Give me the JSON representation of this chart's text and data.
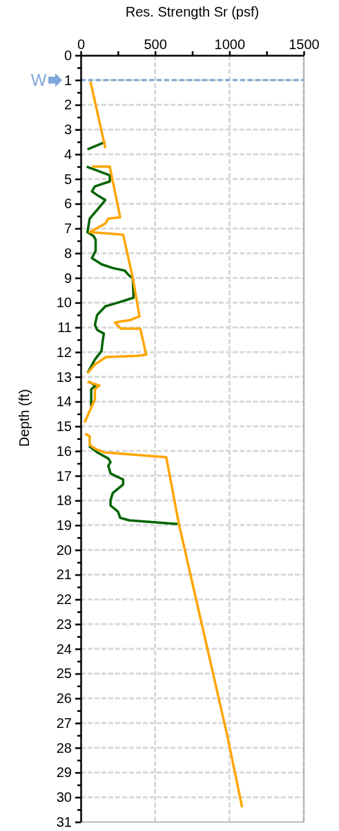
{
  "chart_data": {
    "type": "line",
    "xlabel": "Res. Strength Sr (psf)",
    "ylabel": "Depth (ft)",
    "xlim": [
      0,
      1500
    ],
    "xticks": [
      0,
      {
        "value": 250,
        "label": null
      },
      500,
      {
        "value": 750,
        "label": null
      },
      1000,
      {
        "value": 1250,
        "label": null
      },
      1500
    ],
    "ylim": [
      31,
      0
    ],
    "yticks": [
      0,
      {
        "value": 0.5,
        "label": null
      },
      1,
      {
        "value": 1.5,
        "label": null
      },
      2,
      {
        "value": 2.5,
        "label": null
      },
      3,
      {
        "value": 3.5,
        "label": null
      },
      4,
      {
        "value": 4.5,
        "label": null
      },
      5,
      {
        "value": 5.5,
        "label": null
      },
      6,
      {
        "value": 6.5,
        "label": null
      },
      7,
      {
        "value": 7.5,
        "label": null
      },
      8,
      {
        "value": 8.5,
        "label": null
      },
      9,
      {
        "value": 9.5,
        "label": null
      },
      10,
      {
        "value": 10.5,
        "label": null
      },
      11,
      {
        "value": 11.5,
        "label": null
      },
      12,
      {
        "value": 12.5,
        "label": null
      },
      13,
      {
        "value": 13.5,
        "label": null
      },
      14,
      {
        "value": 14.5,
        "label": null
      },
      15,
      {
        "value": 15.5,
        "label": null
      },
      16,
      {
        "value": 16.5,
        "label": null
      },
      17,
      {
        "value": 17.5,
        "label": null
      },
      18,
      {
        "value": 18.5,
        "label": null
      },
      19,
      {
        "value": 19.5,
        "label": null
      },
      20,
      {
        "value": 20.5,
        "label": null
      },
      21,
      {
        "value": 21.5,
        "label": null
      },
      22,
      {
        "value": 22.5,
        "label": null
      },
      23,
      {
        "value": 23.5,
        "label": null
      },
      24,
      {
        "value": 24.5,
        "label": null
      },
      25,
      {
        "value": 25.5,
        "label": null
      },
      26,
      {
        "value": 26.5,
        "label": null
      },
      27,
      {
        "value": 27.5,
        "label": null
      },
      28,
      {
        "value": 28.5,
        "label": null
      },
      29,
      {
        "value": 29.5,
        "label": null
      },
      30,
      {
        "value": 30.5,
        "label": null
      },
      31
    ],
    "grid": true,
    "marker": "none",
    "line_style": "solid",
    "ref_lines": [
      {
        "axis": "y",
        "value": 1,
        "label": "W",
        "color": "#7fa7d8",
        "line_style": "dashed"
      }
    ],
    "series": [
      {
        "color": "#006400",
        "x": [
          165,
          45,
          null,
          40,
          195,
          195,
          95,
          75,
          110,
          165,
          110,
          60,
          45,
          85,
          100,
          100,
          75,
          140,
          215,
          295,
          325,
          350,
          355,
          250,
          165,
          110,
          95,
          110,
          155,
          145,
          140,
          95,
          45,
          null,
          55,
          100,
          70,
          70,
          null,
          null,
          55,
          110,
          185,
          200,
          185,
          200,
          230,
          285,
          285,
          215,
          200,
          200,
          250,
          265,
          325,
          650
        ],
        "values": [
          3.5,
          3.8,
          null,
          4.5,
          4.85,
          5.1,
          5.3,
          5.5,
          5.65,
          5.85,
          6.25,
          6.6,
          7.15,
          7.3,
          7.45,
          7.9,
          8.2,
          8.45,
          8.6,
          8.7,
          8.9,
          9.0,
          9.8,
          10.0,
          10.15,
          10.5,
          10.9,
          11.1,
          11.25,
          11.65,
          11.95,
          12.3,
          12.85,
          null,
          13.2,
          13.35,
          13.5,
          14.2,
          null,
          null,
          15.8,
          16.05,
          16.3,
          16.45,
          16.6,
          16.9,
          17.0,
          17.15,
          17.35,
          17.7,
          18.0,
          18.2,
          18.45,
          18.7,
          18.8,
          18.95
        ]
      },
      {
        "color": "#ffa500",
        "x": [
          65,
          165,
          null,
          75,
          195,
          265,
          185,
          165,
          60,
          285,
          350,
          395,
          335,
          230,
          270,
          400,
          440,
          385,
          170,
          95,
          45,
          null,
          45,
          125,
          95,
          95,
          55,
          25,
          null,
          30,
          60,
          60,
          95,
          155,
          575,
          660,
          985,
          1085
        ],
        "values": [
          1.05,
          3.75,
          null,
          4.5,
          4.5,
          6.55,
          6.6,
          6.8,
          7.15,
          7.25,
          9.0,
          10.55,
          10.7,
          10.8,
          11.05,
          11.05,
          12.1,
          12.15,
          12.2,
          12.5,
          12.85,
          null,
          13.2,
          13.35,
          13.5,
          13.9,
          14.45,
          14.85,
          null,
          15.3,
          15.4,
          15.75,
          15.9,
          16.05,
          16.25,
          18.95,
          27.5,
          30.4
        ]
      }
    ]
  }
}
